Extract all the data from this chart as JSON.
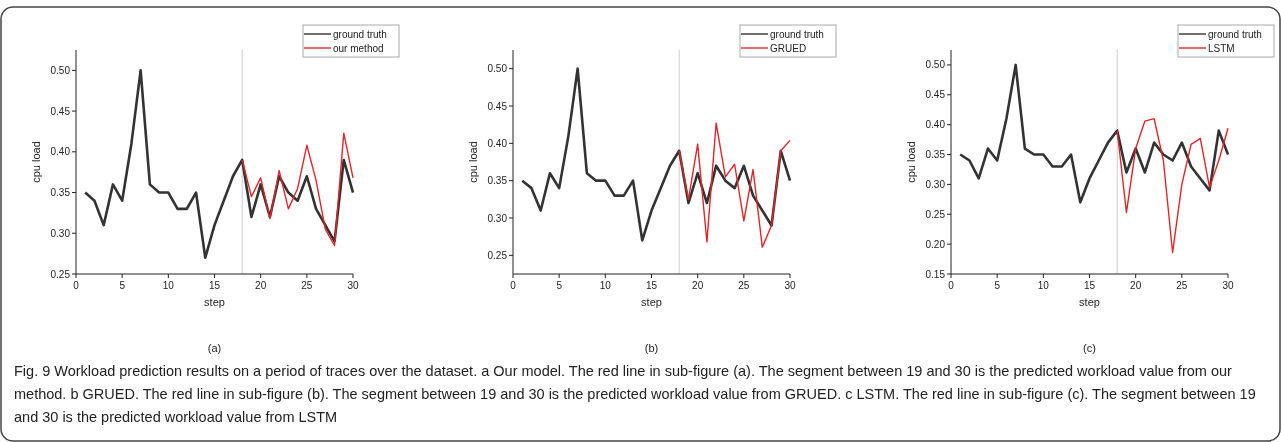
{
  "chart_data": [
    {
      "type": "line",
      "xlabel": "step",
      "ylabel": "cpu load",
      "xlim": [
        0,
        30
      ],
      "xticks": [
        0,
        5,
        10,
        15,
        20,
        25,
        30
      ],
      "ylim": [
        0.25,
        0.525
      ],
      "yticks": [
        0.25,
        {
          "value": 0.3,
          "label": "0.30"
        },
        0.35,
        {
          "value": 0.4,
          "label": "0.40"
        },
        0.45,
        {
          "value": 0.5,
          "label": "0.50"
        }
      ],
      "legend": "top right",
      "ref_lines": [
        {
          "axis": "x",
          "value": 18,
          "color": "#cccccc"
        }
      ],
      "annotations": [
        "(a)"
      ],
      "series": [
        {
          "name": "ground truth",
          "color": "#333333",
          "x": [
            1,
            2,
            3,
            4,
            5,
            6,
            7,
            8,
            9,
            10,
            11,
            12,
            13,
            14,
            15,
            16,
            17,
            18,
            19,
            20,
            21,
            22,
            23,
            24,
            25,
            26,
            27,
            28,
            29,
            30
          ],
          "values": [
            0.35,
            0.34,
            0.31,
            0.36,
            0.34,
            0.41,
            0.5,
            0.36,
            0.35,
            0.35,
            0.33,
            0.33,
            0.35,
            0.27,
            0.31,
            0.34,
            0.37,
            0.39,
            0.32,
            0.36,
            0.32,
            0.37,
            0.35,
            0.34,
            0.37,
            0.33,
            0.31,
            0.29,
            0.39,
            0.35
          ]
        },
        {
          "name": "our method",
          "color": "#e0252b",
          "x": [
            18,
            19,
            20,
            21,
            22,
            23,
            24,
            25,
            26,
            27,
            28,
            29,
            30
          ],
          "values": [
            0.39,
            0.345,
            0.368,
            0.318,
            0.377,
            0.33,
            0.355,
            0.408,
            0.365,
            0.305,
            0.285,
            0.423,
            0.368
          ]
        }
      ]
    },
    {
      "type": "line",
      "xlabel": "step",
      "ylabel": "cpu load",
      "xlim": [
        0,
        30
      ],
      "xticks": [
        0,
        5,
        10,
        15,
        20,
        25,
        30
      ],
      "ylim": [
        0.225,
        0.525
      ],
      "yticks": [
        0.25,
        {
          "value": 0.3,
          "label": "0.30"
        },
        0.35,
        {
          "value": 0.4,
          "label": "0.40"
        },
        0.45,
        {
          "value": 0.5,
          "label": "0.50"
        }
      ],
      "legend": "top right",
      "ref_lines": [
        {
          "axis": "x",
          "value": 18,
          "color": "#cccccc"
        }
      ],
      "annotations": [
        "(b)"
      ],
      "series": [
        {
          "name": "ground truth",
          "color": "#333333",
          "x": [
            1,
            2,
            3,
            4,
            5,
            6,
            7,
            8,
            9,
            10,
            11,
            12,
            13,
            14,
            15,
            16,
            17,
            18,
            19,
            20,
            21,
            22,
            23,
            24,
            25,
            26,
            27,
            28,
            29,
            30
          ],
          "values": [
            0.35,
            0.34,
            0.31,
            0.36,
            0.34,
            0.41,
            0.5,
            0.36,
            0.35,
            0.35,
            0.33,
            0.33,
            0.35,
            0.27,
            0.31,
            0.34,
            0.37,
            0.39,
            0.32,
            0.36,
            0.32,
            0.37,
            0.35,
            0.34,
            0.37,
            0.33,
            0.31,
            0.29,
            0.39,
            0.35
          ]
        },
        {
          "name": "GRUED",
          "color": "#e0252b",
          "x": [
            18,
            19,
            20,
            21,
            22,
            23,
            24,
            25,
            26,
            27,
            28,
            29,
            30
          ],
          "values": [
            0.39,
            0.325,
            0.399,
            0.268,
            0.427,
            0.355,
            0.372,
            0.296,
            0.365,
            0.261,
            0.29,
            0.39,
            0.404
          ]
        }
      ]
    },
    {
      "type": "line",
      "xlabel": "step",
      "ylabel": "cpu load",
      "xlim": [
        0,
        30
      ],
      "xticks": [
        0,
        5,
        10,
        15,
        20,
        25,
        30
      ],
      "ylim": [
        0.15,
        0.525
      ],
      "yticks": [
        0.15,
        {
          "value": 0.2,
          "label": "0.20"
        },
        0.25,
        {
          "value": 0.3,
          "label": "0.30"
        },
        0.35,
        {
          "value": 0.4,
          "label": "0.40"
        },
        0.45,
        {
          "value": 0.5,
          "label": "0.50"
        }
      ],
      "legend": "top right",
      "ref_lines": [
        {
          "axis": "x",
          "value": 18,
          "color": "#cccccc"
        }
      ],
      "annotations": [
        "(c)"
      ],
      "series": [
        {
          "name": "ground truth",
          "color": "#333333",
          "x": [
            1,
            2,
            3,
            4,
            5,
            6,
            7,
            8,
            9,
            10,
            11,
            12,
            13,
            14,
            15,
            16,
            17,
            18,
            19,
            20,
            21,
            22,
            23,
            24,
            25,
            26,
            27,
            28,
            29,
            30
          ],
          "values": [
            0.35,
            0.34,
            0.31,
            0.36,
            0.34,
            0.41,
            0.5,
            0.36,
            0.35,
            0.35,
            0.33,
            0.33,
            0.35,
            0.27,
            0.31,
            0.34,
            0.37,
            0.39,
            0.32,
            0.36,
            0.32,
            0.37,
            0.35,
            0.34,
            0.37,
            0.33,
            0.31,
            0.29,
            0.39,
            0.35
          ]
        },
        {
          "name": "LSTM",
          "color": "#e0252b",
          "x": [
            18,
            19,
            20,
            21,
            22,
            23,
            24,
            25,
            26,
            27,
            28,
            29,
            30
          ],
          "values": [
            0.39,
            0.253,
            0.36,
            0.406,
            0.41,
            0.34,
            0.186,
            0.3,
            0.367,
            0.377,
            0.295,
            0.34,
            0.394
          ]
        }
      ]
    },
    {
      "type": "other",
      "annotations": [
        "Fig. 9 Workload prediction results on a period of traces over the dataset. a Our model. The red line in sub-figure (a). The segment between 19 and 30 is the predicted workload value from our method. b GRUED. The red line in sub-figure (b). The segment between 19 and 30 is the predicted workload value from GRUED. c LSTM. The red line in sub-figure (c). The segment between 19 and 30 is the predicted workload value from LSTM"
      ]
    }
  ]
}
